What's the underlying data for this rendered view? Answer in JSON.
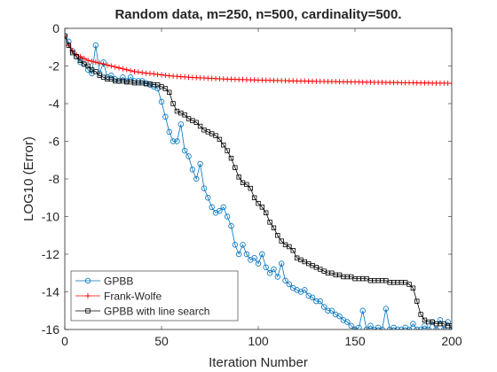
{
  "chart_data": {
    "type": "line",
    "title": "Random data, m=250, n=500, cardinality=500.",
    "x_label": "Iteration Number",
    "y_label": "LOG10 (Error)",
    "x": [
      0,
      2,
      4,
      6,
      8,
      10,
      12,
      14,
      16,
      18,
      20,
      22,
      24,
      26,
      28,
      30,
      32,
      34,
      36,
      38,
      40,
      42,
      44,
      46,
      48,
      50,
      52,
      54,
      56,
      58,
      60,
      62,
      64,
      66,
      68,
      70,
      72,
      74,
      76,
      78,
      80,
      82,
      84,
      86,
      88,
      90,
      92,
      94,
      96,
      98,
      100,
      102,
      104,
      106,
      108,
      110,
      112,
      114,
      116,
      118,
      120,
      122,
      124,
      126,
      128,
      130,
      132,
      134,
      136,
      138,
      140,
      142,
      144,
      146,
      148,
      150,
      152,
      154,
      156,
      158,
      160,
      162,
      164,
      166,
      168,
      170,
      172,
      174,
      176,
      178,
      180,
      182,
      184,
      186,
      188,
      190,
      192,
      194,
      196,
      198,
      200
    ],
    "series": [
      {
        "name": "GPBB",
        "color": "#0072bd",
        "marker": "circle",
        "values": [
          -0.4,
          -0.7,
          -1.2,
          -1.5,
          -1.8,
          -1.9,
          -2.2,
          -2.4,
          -0.9,
          -2.4,
          -1.8,
          -2.6,
          -2.5,
          -2.7,
          -2.8,
          -2.6,
          -2.8,
          -2.6,
          -2.8,
          -2.8,
          -2.8,
          -2.9,
          -3.0,
          -3.1,
          -3.2,
          -3.9,
          -4.7,
          -5.5,
          -6.0,
          -6.0,
          -5.1,
          -6.5,
          -6.8,
          -7.5,
          -8.0,
          -7.2,
          -8.5,
          -9.0,
          -9.5,
          -9.8,
          -9.7,
          -9.5,
          -10.0,
          -10.5,
          -11.5,
          -12.0,
          -11.5,
          -12.0,
          -12.3,
          -12.2,
          -12.5,
          -12.0,
          -12.7,
          -13.0,
          -12.8,
          -13.2,
          -12.5,
          -13.4,
          -13.6,
          -13.8,
          -13.9,
          -14.0,
          -13.9,
          -14.2,
          -14.3,
          -14.5,
          -14.5,
          -14.8,
          -15.0,
          -15.0,
          -15.2,
          -15.3,
          -15.5,
          -15.6,
          -15.8,
          -16.0,
          -15.9,
          -15.0,
          -16.0,
          -15.8,
          -16.0,
          -15.9,
          -16.0,
          -14.9,
          -16.0,
          -15.9,
          -16.0,
          -16.0,
          -15.9,
          -16.0,
          -15.7,
          -16.0,
          -16.0,
          -15.8,
          -16.0,
          -15.6,
          -16.0,
          -15.5,
          -16.0,
          -15.6,
          -16.0
        ]
      },
      {
        "name": "Frank-Wolfe",
        "color": "#ff0000",
        "marker": "plus",
        "values": [
          -0.4,
          -0.9,
          -1.2,
          -1.4,
          -1.5,
          -1.6,
          -1.7,
          -1.75,
          -1.8,
          -1.85,
          -1.9,
          -1.95,
          -2.0,
          -2.05,
          -2.1,
          -2.15,
          -2.2,
          -2.25,
          -2.3,
          -2.32,
          -2.35,
          -2.38,
          -2.4,
          -2.42,
          -2.45,
          -2.47,
          -2.5,
          -2.52,
          -2.54,
          -2.55,
          -2.57,
          -2.58,
          -2.6,
          -2.61,
          -2.62,
          -2.63,
          -2.64,
          -2.65,
          -2.66,
          -2.67,
          -2.68,
          -2.69,
          -2.7,
          -2.7,
          -2.71,
          -2.72,
          -2.72,
          -2.73,
          -2.74,
          -2.74,
          -2.75,
          -2.75,
          -2.76,
          -2.76,
          -2.77,
          -2.77,
          -2.78,
          -2.78,
          -2.79,
          -2.79,
          -2.8,
          -2.8,
          -2.8,
          -2.81,
          -2.81,
          -2.82,
          -2.82,
          -2.82,
          -2.83,
          -2.83,
          -2.83,
          -2.84,
          -2.84,
          -2.84,
          -2.85,
          -2.85,
          -2.85,
          -2.86,
          -2.86,
          -2.86,
          -2.87,
          -2.87,
          -2.87,
          -2.88,
          -2.88,
          -2.88,
          -2.88,
          -2.89,
          -2.89,
          -2.89,
          -2.89,
          -2.9,
          -2.9,
          -2.9,
          -2.9,
          -2.91,
          -2.91,
          -2.91,
          -2.91,
          -2.92,
          -2.92
        ]
      },
      {
        "name": "GPBB with line search",
        "color": "#000000",
        "marker": "square",
        "values": [
          -0.4,
          -0.9,
          -1.3,
          -1.5,
          -1.7,
          -1.9,
          -2.0,
          -2.2,
          -2.3,
          -2.5,
          -2.6,
          -2.7,
          -2.7,
          -2.8,
          -2.8,
          -2.8,
          -2.85,
          -2.85,
          -2.9,
          -2.9,
          -2.9,
          -2.95,
          -2.95,
          -3.0,
          -3.0,
          -3.1,
          -3.2,
          -3.4,
          -4.0,
          -4.4,
          -4.5,
          -4.6,
          -4.8,
          -4.9,
          -5.0,
          -5.2,
          -5.4,
          -5.5,
          -5.6,
          -5.7,
          -5.9,
          -6.2,
          -6.5,
          -6.9,
          -7.4,
          -7.9,
          -8.2,
          -8.3,
          -8.5,
          -9.0,
          -9.3,
          -9.5,
          -9.8,
          -10.3,
          -10.6,
          -11.0,
          -11.3,
          -11.5,
          -11.6,
          -11.8,
          -12.2,
          -12.3,
          -12.4,
          -12.5,
          -12.6,
          -12.7,
          -12.8,
          -12.9,
          -13.0,
          -13.0,
          -13.1,
          -13.1,
          -13.2,
          -13.2,
          -13.2,
          -13.3,
          -13.3,
          -13.3,
          -13.3,
          -13.4,
          -13.4,
          -13.4,
          -13.4,
          -13.4,
          -13.5,
          -13.5,
          -13.5,
          -13.5,
          -13.5,
          -13.6,
          -13.8,
          -14.5,
          -15.2,
          -15.5,
          -15.6,
          -15.6,
          -15.7,
          -15.7,
          -15.7,
          -15.8,
          -15.8
        ]
      }
    ],
    "xlim": [
      0,
      200
    ],
    "xticks": [
      0,
      50,
      100,
      150,
      200
    ],
    "ylim": [
      -16,
      0
    ],
    "yticks": [
      -16,
      -14,
      -12,
      -10,
      -8,
      -6,
      -4,
      -2,
      0
    ],
    "grid": false,
    "legend": "southwest"
  }
}
